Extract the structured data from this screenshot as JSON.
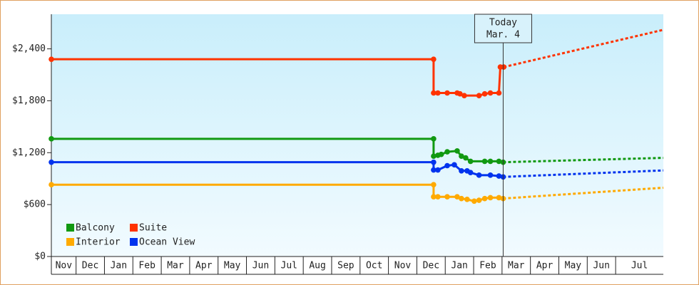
{
  "chart_data": {
    "type": "line",
    "series": [
      {
        "name": "Balcony",
        "color": "#119911",
        "x": [
          0.13,
          13.59,
          13.59,
          13.74,
          13.86,
          14.07,
          14.42,
          14.57,
          14.72,
          14.89,
          15.39,
          15.59,
          15.89,
          16.04
        ],
        "values": [
          1360,
          1360,
          1160,
          1170,
          1180,
          1210,
          1220,
          1160,
          1140,
          1100,
          1100,
          1100,
          1100,
          1090
        ],
        "forecast_x": [
          16.04,
          21.68
        ],
        "forecast_values": [
          1090,
          1140
        ]
      },
      {
        "name": "Suite",
        "color": "#ff3300",
        "x": [
          0.13,
          13.59,
          13.59,
          13.74,
          14.07,
          14.42,
          14.52,
          14.67,
          15.19,
          15.39,
          15.59,
          15.89,
          15.94,
          16.06
        ],
        "values": [
          2280,
          2280,
          1890,
          1890,
          1890,
          1890,
          1880,
          1860,
          1860,
          1880,
          1890,
          1890,
          2190,
          2190
        ],
        "forecast_x": [
          16.06,
          21.68
        ],
        "forecast_values": [
          2190,
          2620
        ]
      },
      {
        "name": "Interior",
        "color": "#ffaa00",
        "x": [
          0.13,
          13.59,
          13.59,
          13.74,
          14.07,
          14.42,
          14.57,
          14.77,
          15.02,
          15.19,
          15.39,
          15.59,
          15.89,
          16.04
        ],
        "values": [
          830,
          830,
          690,
          690,
          690,
          690,
          670,
          660,
          640,
          650,
          670,
          680,
          680,
          670
        ],
        "forecast_x": [
          16.04,
          21.68
        ],
        "forecast_values": [
          670,
          795
        ]
      },
      {
        "name": "Ocean View",
        "color": "#0033ee",
        "x": [
          0.13,
          13.59,
          13.59,
          13.74,
          14.07,
          14.32,
          14.57,
          14.77,
          14.89,
          15.19,
          15.59,
          15.89,
          16.04
        ],
        "values": [
          1090,
          1090,
          1000,
          1000,
          1050,
          1060,
          990,
          990,
          970,
          940,
          940,
          930,
          920
        ],
        "forecast_x": [
          16.04,
          21.68
        ],
        "forecast_values": [
          920,
          995
        ]
      }
    ],
    "xlim": [
      0.13,
      21.68
    ],
    "xticks": [
      {
        "value": 0,
        "label": "Nov"
      },
      {
        "value": 1,
        "label": "Dec"
      },
      {
        "value": 2,
        "label": "Jan"
      },
      {
        "value": 3,
        "label": "Feb"
      },
      {
        "value": 4,
        "label": "Mar"
      },
      {
        "value": 5,
        "label": "Apr"
      },
      {
        "value": 6,
        "label": "May"
      },
      {
        "value": 7,
        "label": "Jun"
      },
      {
        "value": 8,
        "label": "Jul"
      },
      {
        "value": 9,
        "label": "Aug"
      },
      {
        "value": 10,
        "label": "Sep"
      },
      {
        "value": 11,
        "label": "Oct"
      },
      {
        "value": 12,
        "label": "Nov"
      },
      {
        "value": 13,
        "label": "Dec"
      },
      {
        "value": 14,
        "label": "Jan"
      },
      {
        "value": 15,
        "label": "Feb"
      },
      {
        "value": 16,
        "label": "Mar"
      },
      {
        "value": 17,
        "label": "Apr"
      },
      {
        "value": 18,
        "label": "May"
      },
      {
        "value": 19,
        "label": "Jun"
      },
      {
        "value": 20,
        "label": "Jul"
      }
    ],
    "ylim": [
      0,
      2800
    ],
    "yticks": [
      {
        "value": 0,
        "label": "$0"
      },
      {
        "value": 600,
        "label": "$600"
      },
      {
        "value": 1200,
        "label": "$1,200"
      },
      {
        "value": 1800,
        "label": "$1,800"
      },
      {
        "value": 2400,
        "label": "$2,400"
      }
    ],
    "today": {
      "x": 16.04,
      "label": "Today",
      "date": "Mar. 4"
    },
    "legend": "lower left"
  }
}
